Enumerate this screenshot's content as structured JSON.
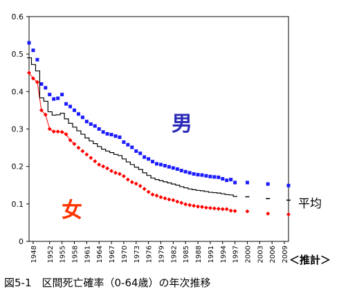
{
  "chart_data": {
    "type": "scatter",
    "caption": "図5-1　区間死亡確率（0-64歳）の年次推移",
    "estimate_label": "＜推計＞",
    "ylim": [
      0,
      0.6
    ],
    "yticks": [
      0,
      0.1,
      0.2,
      0.3,
      0.4,
      0.5,
      0.6
    ],
    "xlim": [
      1947,
      2010
    ],
    "xticks": [
      1948,
      1952,
      1955,
      1958,
      1961,
      1964,
      1967,
      1970,
      1973,
      1976,
      1979,
      1982,
      1985,
      1988,
      1991,
      1994,
      1997,
      2000,
      2003,
      2006,
      2009
    ],
    "grid": false,
    "series": [
      {
        "name": "男",
        "color": "#1a1aff",
        "marker": "square",
        "label_color": "#2b2bb8",
        "x": [
          1947,
          1948,
          1949,
          1950,
          1951,
          1952,
          1953,
          1954,
          1955,
          1956,
          1957,
          1958,
          1959,
          1960,
          1961,
          1962,
          1963,
          1964,
          1965,
          1966,
          1967,
          1968,
          1969,
          1970,
          1971,
          1972,
          1973,
          1974,
          1975,
          1976,
          1977,
          1978,
          1979,
          1980,
          1981,
          1982,
          1983,
          1984,
          1985,
          1986,
          1987,
          1988,
          1989,
          1990,
          1991,
          1992,
          1993,
          1994,
          1995,
          1996,
          1997,
          2000,
          2005,
          2010
        ],
        "y": [
          0.53,
          0.51,
          0.485,
          0.42,
          0.41,
          0.392,
          0.38,
          0.382,
          0.392,
          0.367,
          0.36,
          0.35,
          0.34,
          0.331,
          0.32,
          0.313,
          0.308,
          0.3,
          0.292,
          0.287,
          0.285,
          0.281,
          0.278,
          0.265,
          0.258,
          0.251,
          0.241,
          0.235,
          0.225,
          0.22,
          0.213,
          0.207,
          0.205,
          0.202,
          0.199,
          0.196,
          0.193,
          0.189,
          0.186,
          0.183,
          0.18,
          0.178,
          0.177,
          0.175,
          0.173,
          0.172,
          0.171,
          0.167,
          0.163,
          0.165,
          0.157,
          0.157,
          0.153,
          0.149
        ]
      },
      {
        "name": "女",
        "color": "#ff0000",
        "marker": "diamond",
        "label_color": "#ff3300",
        "x": [
          1947,
          1948,
          1949,
          1950,
          1951,
          1952,
          1953,
          1954,
          1955,
          1956,
          1957,
          1958,
          1959,
          1960,
          1961,
          1962,
          1963,
          1964,
          1965,
          1966,
          1967,
          1968,
          1969,
          1970,
          1971,
          1972,
          1973,
          1974,
          1975,
          1976,
          1977,
          1978,
          1979,
          1980,
          1981,
          1982,
          1983,
          1984,
          1985,
          1986,
          1987,
          1988,
          1989,
          1990,
          1991,
          1992,
          1993,
          1994,
          1995,
          1996,
          1997,
          2000,
          2005,
          2010
        ],
        "y": [
          0.45,
          0.435,
          0.425,
          0.35,
          0.338,
          0.3,
          0.293,
          0.293,
          0.292,
          0.286,
          0.27,
          0.26,
          0.25,
          0.241,
          0.232,
          0.223,
          0.214,
          0.205,
          0.2,
          0.195,
          0.188,
          0.183,
          0.18,
          0.174,
          0.165,
          0.158,
          0.154,
          0.148,
          0.14,
          0.132,
          0.125,
          0.122,
          0.118,
          0.115,
          0.112,
          0.11,
          0.106,
          0.103,
          0.099,
          0.097,
          0.095,
          0.093,
          0.092,
          0.09,
          0.089,
          0.088,
          0.087,
          0.086,
          0.086,
          0.082,
          0.081,
          0.08,
          0.074,
          0.072
        ]
      },
      {
        "name": "平均",
        "color": "#000000",
        "marker": "step",
        "label_color": "#000000",
        "x": [
          1947,
          1948,
          1949,
          1950,
          1951,
          1952,
          1953,
          1954,
          1955,
          1956,
          1957,
          1958,
          1959,
          1960,
          1961,
          1962,
          1963,
          1964,
          1965,
          1966,
          1967,
          1968,
          1969,
          1970,
          1971,
          1972,
          1973,
          1974,
          1975,
          1976,
          1977,
          1978,
          1979,
          1980,
          1981,
          1982,
          1983,
          1984,
          1985,
          1986,
          1987,
          1988,
          1989,
          1990,
          1991,
          1992,
          1993,
          1994,
          1995,
          1996,
          1997,
          2000,
          2005,
          2010
        ],
        "y": [
          0.49,
          0.472,
          0.455,
          0.383,
          0.374,
          0.346,
          0.337,
          0.338,
          0.342,
          0.327,
          0.315,
          0.305,
          0.295,
          0.286,
          0.276,
          0.268,
          0.261,
          0.253,
          0.246,
          0.241,
          0.237,
          0.232,
          0.229,
          0.22,
          0.212,
          0.205,
          0.198,
          0.192,
          0.183,
          0.176,
          0.169,
          0.165,
          0.162,
          0.159,
          0.156,
          0.153,
          0.15,
          0.146,
          0.143,
          0.14,
          0.138,
          0.136,
          0.135,
          0.133,
          0.131,
          0.13,
          0.129,
          0.127,
          0.125,
          0.124,
          0.12,
          0.119,
          0.114,
          0.11
        ]
      }
    ]
  }
}
